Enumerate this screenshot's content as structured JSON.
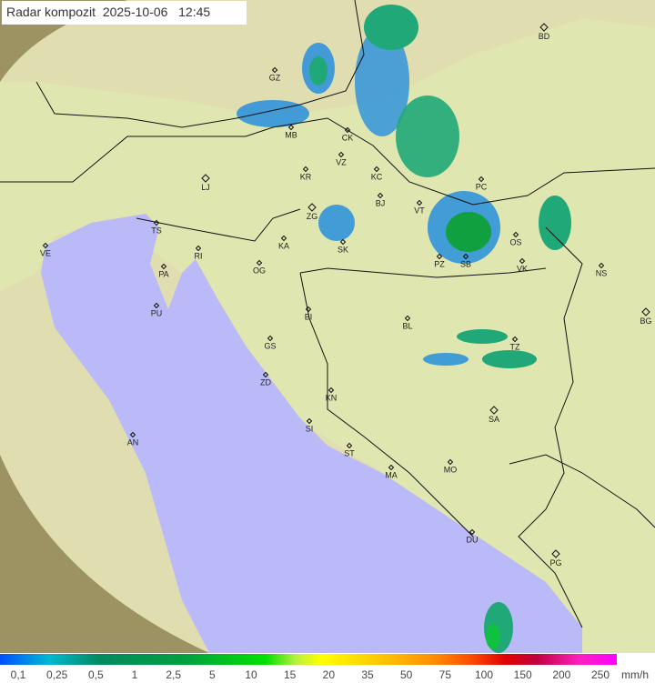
{
  "header": {
    "title": "Radar kompozit",
    "date": "2025-10-06",
    "time": "12:45"
  },
  "colors": {
    "land": "#e8e8b0",
    "sea": "#babaf8",
    "outside_coverage": "#9a9060",
    "radar_low": "#1a8ae0",
    "radar_mid": "#20a878",
    "radar_high": "#10a040"
  },
  "cities": [
    "BD",
    "GZ",
    "MB",
    "CK",
    "VZ",
    "KR",
    "LJ",
    "KC",
    "BJ",
    "PC",
    "VT",
    "ZG",
    "TS",
    "VE",
    "KA",
    "SK",
    "OS",
    "PZ",
    "SB",
    "VK",
    "NS",
    "RI",
    "PA",
    "OG",
    "PU",
    "BG",
    "BI",
    "BL",
    "GS",
    "TZ",
    "ZD",
    "KN",
    "SA",
    "SI",
    "AN",
    "ST",
    "MA",
    "MO",
    "DU",
    "PG"
  ],
  "legend": {
    "labels": [
      "0,1",
      "0,25",
      "0,5",
      "1",
      "2,5",
      "5",
      "10",
      "15",
      "20",
      "35",
      "50",
      "75",
      "100",
      "150",
      "200",
      "250"
    ],
    "unit": "mm/h"
  }
}
